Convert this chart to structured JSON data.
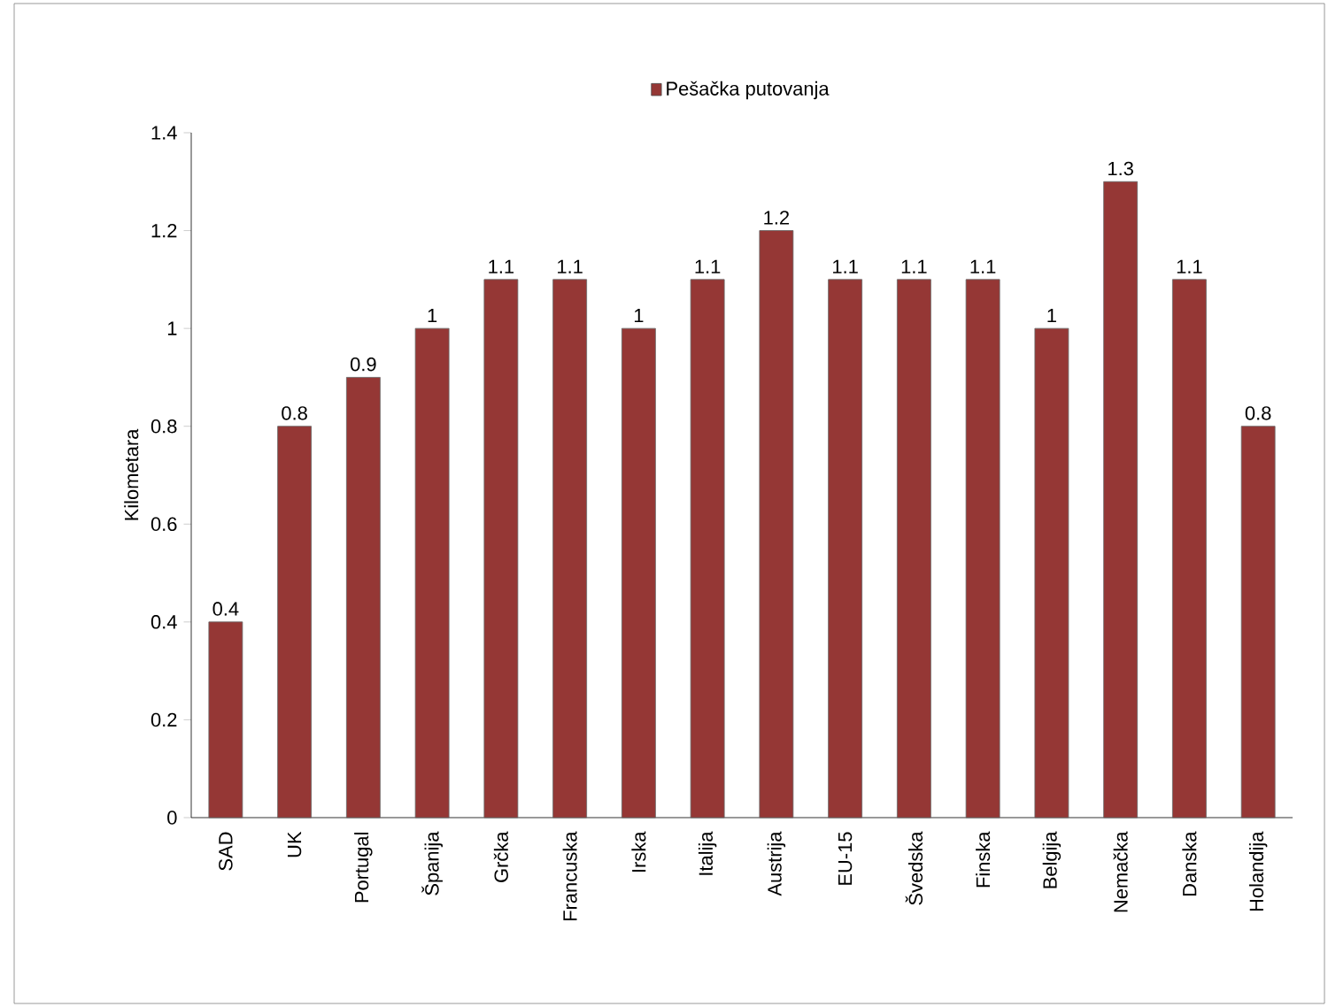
{
  "chart_data": {
    "type": "bar",
    "ylabel": "Kilometara",
    "categories": [
      "SAD",
      "UK",
      "Portugal",
      "Španija",
      "Grčka",
      "Francuska",
      "Irska",
      "Italija",
      "Austrija",
      "EU-15",
      "Švedska",
      "Finska",
      "Belgija",
      "Nemačka",
      "Danska",
      "Holandija"
    ],
    "series": [
      {
        "name": "Pešačka putovanja",
        "color": "#953735",
        "values": [
          0.4,
          0.8,
          0.9,
          1,
          1.1,
          1.1,
          1,
          1.1,
          1.2,
          1.1,
          1.1,
          1.1,
          1,
          1.3,
          1.1,
          0.8
        ]
      }
    ],
    "ylim": [
      0,
      1.4
    ],
    "yticks": [
      0,
      0.2,
      0.4,
      0.6,
      0.8,
      1,
      1.2,
      1.4
    ],
    "data_labels": true,
    "legend": "top",
    "grid": false
  }
}
